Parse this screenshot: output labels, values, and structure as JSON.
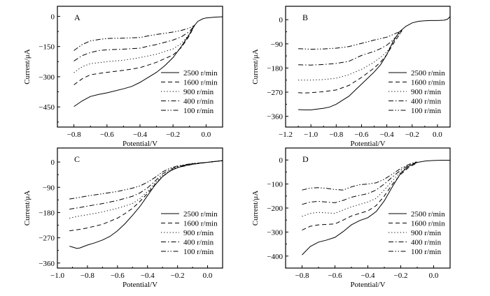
{
  "chart_data": [
    {
      "type": "line",
      "panel_label": "A",
      "xlabel": "Potential/V",
      "ylabel": "Current/μA",
      "xlim": [
        -0.9,
        0.1
      ],
      "ylim": [
        -550,
        50
      ],
      "xticks": [
        -0.8,
        -0.6,
        -0.4,
        -0.2,
        0.0
      ],
      "xtick_labels": [
        "−0.8",
        "−0.6",
        "−0.4",
        "−0.2",
        "0.0"
      ],
      "yticks": [
        0,
        -150,
        -300,
        -450
      ],
      "ytick_labels": [
        "0",
        "−150",
        "−300",
        "−450"
      ],
      "legend_position": "lower-right",
      "series": [
        {
          "name": "2500 r/min",
          "style": "solid",
          "x": [
            -0.8,
            -0.75,
            -0.7,
            -0.65,
            -0.6,
            -0.5,
            -0.45,
            -0.4,
            -0.3,
            -0.25,
            -0.2,
            -0.15,
            -0.1,
            -0.07,
            -0.05,
            -0.02,
            0.0,
            0.05,
            0.1
          ],
          "y": [
            -448,
            -420,
            -398,
            -388,
            -380,
            -360,
            -348,
            -328,
            -278,
            -245,
            -205,
            -150,
            -88,
            -45,
            -25,
            -12,
            -8,
            -4,
            -2
          ]
        },
        {
          "name": "1600 r/min",
          "style": "dash",
          "x": [
            -0.8,
            -0.75,
            -0.7,
            -0.6,
            -0.5,
            -0.45,
            -0.4,
            -0.35,
            -0.3,
            -0.2,
            -0.15,
            -0.1,
            -0.07
          ],
          "y": [
            -340,
            -310,
            -290,
            -278,
            -268,
            -262,
            -255,
            -242,
            -228,
            -192,
            -155,
            -95,
            -45
          ]
        },
        {
          "name": "900 r/min",
          "style": "dot",
          "x": [
            -0.8,
            -0.75,
            -0.7,
            -0.6,
            -0.5,
            -0.4,
            -0.3,
            -0.2,
            -0.15,
            -0.1,
            -0.07
          ],
          "y": [
            -280,
            -250,
            -235,
            -225,
            -218,
            -205,
            -188,
            -162,
            -135,
            -88,
            -45
          ]
        },
        {
          "name": "400 r/min",
          "style": "dashdot",
          "x": [
            -0.8,
            -0.75,
            -0.7,
            -0.65,
            -0.6,
            -0.5,
            -0.4,
            -0.35,
            -0.3,
            -0.2,
            -0.15,
            -0.1,
            -0.07
          ],
          "y": [
            -222,
            -195,
            -180,
            -170,
            -166,
            -163,
            -158,
            -148,
            -140,
            -118,
            -102,
            -75,
            -45
          ]
        },
        {
          "name": "100 r/min",
          "style": "dashdotdot",
          "x": [
            -0.8,
            -0.75,
            -0.7,
            -0.65,
            -0.6,
            -0.5,
            -0.4,
            -0.35,
            -0.3,
            -0.2,
            -0.15,
            -0.1,
            -0.07
          ],
          "y": [
            -170,
            -140,
            -122,
            -115,
            -110,
            -108,
            -105,
            -97,
            -90,
            -78,
            -70,
            -58,
            -45
          ]
        }
      ]
    },
    {
      "type": "line",
      "panel_label": "B",
      "xlabel": "Potential/V",
      "ylabel": "Current/μA",
      "xlim": [
        -1.2,
        0.1
      ],
      "ylim": [
        -400,
        50
      ],
      "xticks": [
        -1.2,
        -1.0,
        -0.8,
        -0.6,
        -0.4,
        -0.2,
        0.0
      ],
      "xtick_labels": [
        "−1.2",
        "−1.0",
        "−0.8",
        "−0.6",
        "−0.4",
        "−0.2",
        "0.0"
      ],
      "yticks": [
        0,
        -90,
        -180,
        -270,
        -360
      ],
      "ytick_labels": [
        "0",
        "−90",
        "−180",
        "−270",
        "−360"
      ],
      "legend_position": "lower-right",
      "series": [
        {
          "name": "2500 r/min",
          "style": "solid",
          "x": [
            -1.1,
            -1.05,
            -1.0,
            -0.9,
            -0.85,
            -0.8,
            -0.7,
            -0.6,
            -0.5,
            -0.45,
            -0.4,
            -0.35,
            -0.3,
            -0.25,
            -0.2,
            -0.15,
            -0.1,
            -0.05,
            0.0,
            0.05,
            0.08,
            0.1
          ],
          "y": [
            -335,
            -336,
            -336,
            -330,
            -325,
            -315,
            -285,
            -240,
            -195,
            -168,
            -130,
            -80,
            -45,
            -25,
            -12,
            -6,
            -4,
            -3,
            -3,
            -2,
            2,
            12
          ]
        },
        {
          "name": "1600 r/min",
          "style": "dash",
          "x": [
            -1.1,
            -1.05,
            -1.0,
            -0.9,
            -0.8,
            -0.7,
            -0.6,
            -0.5,
            -0.45,
            -0.4,
            -0.35,
            -0.3,
            -0.28
          ],
          "y": [
            -272,
            -273,
            -272,
            -268,
            -262,
            -245,
            -215,
            -180,
            -158,
            -130,
            -90,
            -55,
            -40
          ]
        },
        {
          "name": "900 r/min",
          "style": "dot",
          "x": [
            -1.1,
            -1.0,
            -0.9,
            -0.8,
            -0.7,
            -0.6,
            -0.5,
            -0.45,
            -0.4,
            -0.35,
            -0.3,
            -0.28
          ],
          "y": [
            -225,
            -225,
            -223,
            -218,
            -205,
            -185,
            -158,
            -140,
            -120,
            -85,
            -55,
            -40
          ]
        },
        {
          "name": "400 r/min",
          "style": "dashdot",
          "x": [
            -1.1,
            -1.0,
            -0.9,
            -0.8,
            -0.7,
            -0.6,
            -0.5,
            -0.45,
            -0.4,
            -0.35,
            -0.3,
            -0.28
          ],
          "y": [
            -168,
            -169,
            -167,
            -163,
            -155,
            -133,
            -118,
            -108,
            -95,
            -75,
            -50,
            -40
          ]
        },
        {
          "name": "100 r/min",
          "style": "dashdotdot",
          "x": [
            -1.1,
            -1.0,
            -0.9,
            -0.8,
            -0.7,
            -0.6,
            -0.5,
            -0.4,
            -0.35,
            -0.3,
            -0.28
          ],
          "y": [
            -108,
            -110,
            -109,
            -106,
            -100,
            -88,
            -76,
            -65,
            -55,
            -45,
            -40
          ]
        }
      ]
    },
    {
      "type": "line",
      "panel_label": "C",
      "xlabel": "Potential/V",
      "ylabel": "Current/μA",
      "xlim": [
        -1.0,
        0.1
      ],
      "ylim": [
        -378,
        50
      ],
      "xticks": [
        -1.0,
        -0.8,
        -0.6,
        -0.4,
        -0.2,
        0.0
      ],
      "xtick_labels": [
        "−1.0",
        "−0.8",
        "−0.6",
        "−0.4",
        "−0.2",
        "0.0"
      ],
      "yticks": [
        0,
        -90,
        -180,
        -270,
        -360
      ],
      "ytick_labels": [
        "0",
        "−90",
        "−180",
        "−270",
        "−360"
      ],
      "legend_position": "lower-right",
      "series": [
        {
          "name": "2500 r/min",
          "style": "solid",
          "x": [
            -0.92,
            -0.9,
            -0.87,
            -0.85,
            -0.8,
            -0.75,
            -0.7,
            -0.65,
            -0.6,
            -0.55,
            -0.5,
            -0.45,
            -0.4,
            -0.35,
            -0.3,
            -0.25,
            -0.2,
            -0.15,
            -0.1,
            -0.05,
            0.0,
            0.05,
            0.1
          ],
          "y": [
            -300,
            -303,
            -308,
            -306,
            -296,
            -288,
            -278,
            -265,
            -245,
            -220,
            -190,
            -158,
            -120,
            -82,
            -52,
            -32,
            -20,
            -13,
            -8,
            -4,
            -1,
            2,
            5
          ]
        },
        {
          "name": "1600 r/min",
          "style": "dash",
          "x": [
            -0.92,
            -0.85,
            -0.8,
            -0.7,
            -0.6,
            -0.55,
            -0.5,
            -0.45,
            -0.4,
            -0.35,
            -0.3,
            -0.25,
            -0.2,
            -0.1,
            0.0,
            0.1
          ],
          "y": [
            -245,
            -240,
            -235,
            -222,
            -200,
            -184,
            -165,
            -140,
            -112,
            -80,
            -52,
            -32,
            -20,
            -8,
            -1,
            5
          ]
        },
        {
          "name": "900 r/min",
          "style": "dot",
          "x": [
            -0.92,
            -0.85,
            -0.8,
            -0.7,
            -0.6,
            -0.5,
            -0.45,
            -0.4,
            -0.35,
            -0.3,
            -0.25,
            -0.2,
            -0.1,
            0.0,
            0.1
          ],
          "y": [
            -200,
            -192,
            -188,
            -178,
            -165,
            -148,
            -130,
            -105,
            -75,
            -48,
            -30,
            -18,
            -7,
            -1,
            5
          ]
        },
        {
          "name": "400 r/min",
          "style": "dashdot",
          "x": [
            -0.92,
            -0.85,
            -0.8,
            -0.7,
            -0.6,
            -0.5,
            -0.45,
            -0.4,
            -0.35,
            -0.3,
            -0.25,
            -0.2,
            -0.1,
            0.0,
            0.1
          ],
          "y": [
            -168,
            -162,
            -157,
            -148,
            -137,
            -122,
            -110,
            -92,
            -68,
            -42,
            -27,
            -16,
            -6,
            -1,
            5
          ]
        },
        {
          "name": "100 r/min",
          "style": "dashdotdot",
          "x": [
            -0.92,
            -0.85,
            -0.8,
            -0.7,
            -0.6,
            -0.5,
            -0.45,
            -0.4,
            -0.35,
            -0.3,
            -0.25,
            -0.2,
            -0.1,
            0.0,
            0.1
          ],
          "y": [
            -132,
            -126,
            -121,
            -113,
            -105,
            -93,
            -85,
            -72,
            -55,
            -35,
            -22,
            -14,
            -5,
            -1,
            5
          ]
        }
      ]
    },
    {
      "type": "line",
      "panel_label": "D",
      "xlabel": "Potential/V",
      "ylabel": "Current/μA",
      "xlim": [
        -0.9,
        0.1
      ],
      "ylim": [
        -450,
        50
      ],
      "xticks": [
        -0.8,
        -0.6,
        -0.4,
        -0.2,
        0.0
      ],
      "xtick_labels": [
        "−0.8",
        "−0.6",
        "−0.4",
        "−0.2",
        "0.0"
      ],
      "yticks": [
        0,
        -100,
        -200,
        -300,
        -400
      ],
      "ytick_labels": [
        "0",
        "−100",
        "−200",
        "−300",
        "−400"
      ],
      "legend_position": "lower-right",
      "series": [
        {
          "name": "2500 r/min",
          "style": "solid",
          "x": [
            -0.8,
            -0.75,
            -0.7,
            -0.65,
            -0.6,
            -0.55,
            -0.5,
            -0.45,
            -0.4,
            -0.35,
            -0.3,
            -0.25,
            -0.2,
            -0.15,
            -0.1,
            -0.05,
            0.0,
            0.05,
            0.1
          ],
          "y": [
            -395,
            -360,
            -342,
            -333,
            -322,
            -298,
            -270,
            -252,
            -240,
            -215,
            -170,
            -110,
            -55,
            -25,
            -10,
            -4,
            -2,
            -1,
            -1
          ]
        },
        {
          "name": "1600 r/min",
          "style": "dash",
          "x": [
            -0.8,
            -0.75,
            -0.7,
            -0.65,
            -0.6,
            -0.55,
            -0.5,
            -0.45,
            -0.4,
            -0.35,
            -0.3,
            -0.25,
            -0.2,
            -0.15,
            -0.1
          ],
          "y": [
            -292,
            -276,
            -270,
            -268,
            -266,
            -250,
            -233,
            -222,
            -212,
            -190,
            -150,
            -100,
            -60,
            -30,
            -12
          ]
        },
        {
          "name": "900 r/min",
          "style": "dot",
          "x": [
            -0.8,
            -0.75,
            -0.7,
            -0.65,
            -0.6,
            -0.55,
            -0.5,
            -0.45,
            -0.4,
            -0.35,
            -0.3,
            -0.25,
            -0.2,
            -0.15,
            -0.1
          ],
          "y": [
            -235,
            -222,
            -218,
            -220,
            -222,
            -208,
            -195,
            -185,
            -175,
            -160,
            -125,
            -85,
            -50,
            -25,
            -10
          ]
        },
        {
          "name": "400 r/min",
          "style": "dashdot",
          "x": [
            -0.8,
            -0.75,
            -0.7,
            -0.65,
            -0.6,
            -0.55,
            -0.5,
            -0.45,
            -0.4,
            -0.35,
            -0.3,
            -0.25,
            -0.2,
            -0.15,
            -0.1
          ],
          "y": [
            -185,
            -175,
            -172,
            -175,
            -178,
            -168,
            -155,
            -147,
            -140,
            -125,
            -100,
            -70,
            -42,
            -22,
            -8
          ]
        },
        {
          "name": "100 r/min",
          "style": "dashdotdot",
          "x": [
            -0.8,
            -0.75,
            -0.7,
            -0.65,
            -0.6,
            -0.55,
            -0.5,
            -0.45,
            -0.4,
            -0.35,
            -0.3,
            -0.25,
            -0.2,
            -0.15,
            -0.1
          ],
          "y": [
            -125,
            -117,
            -115,
            -118,
            -123,
            -125,
            -112,
            -103,
            -100,
            -95,
            -80,
            -58,
            -35,
            -18,
            -6
          ]
        }
      ]
    }
  ]
}
